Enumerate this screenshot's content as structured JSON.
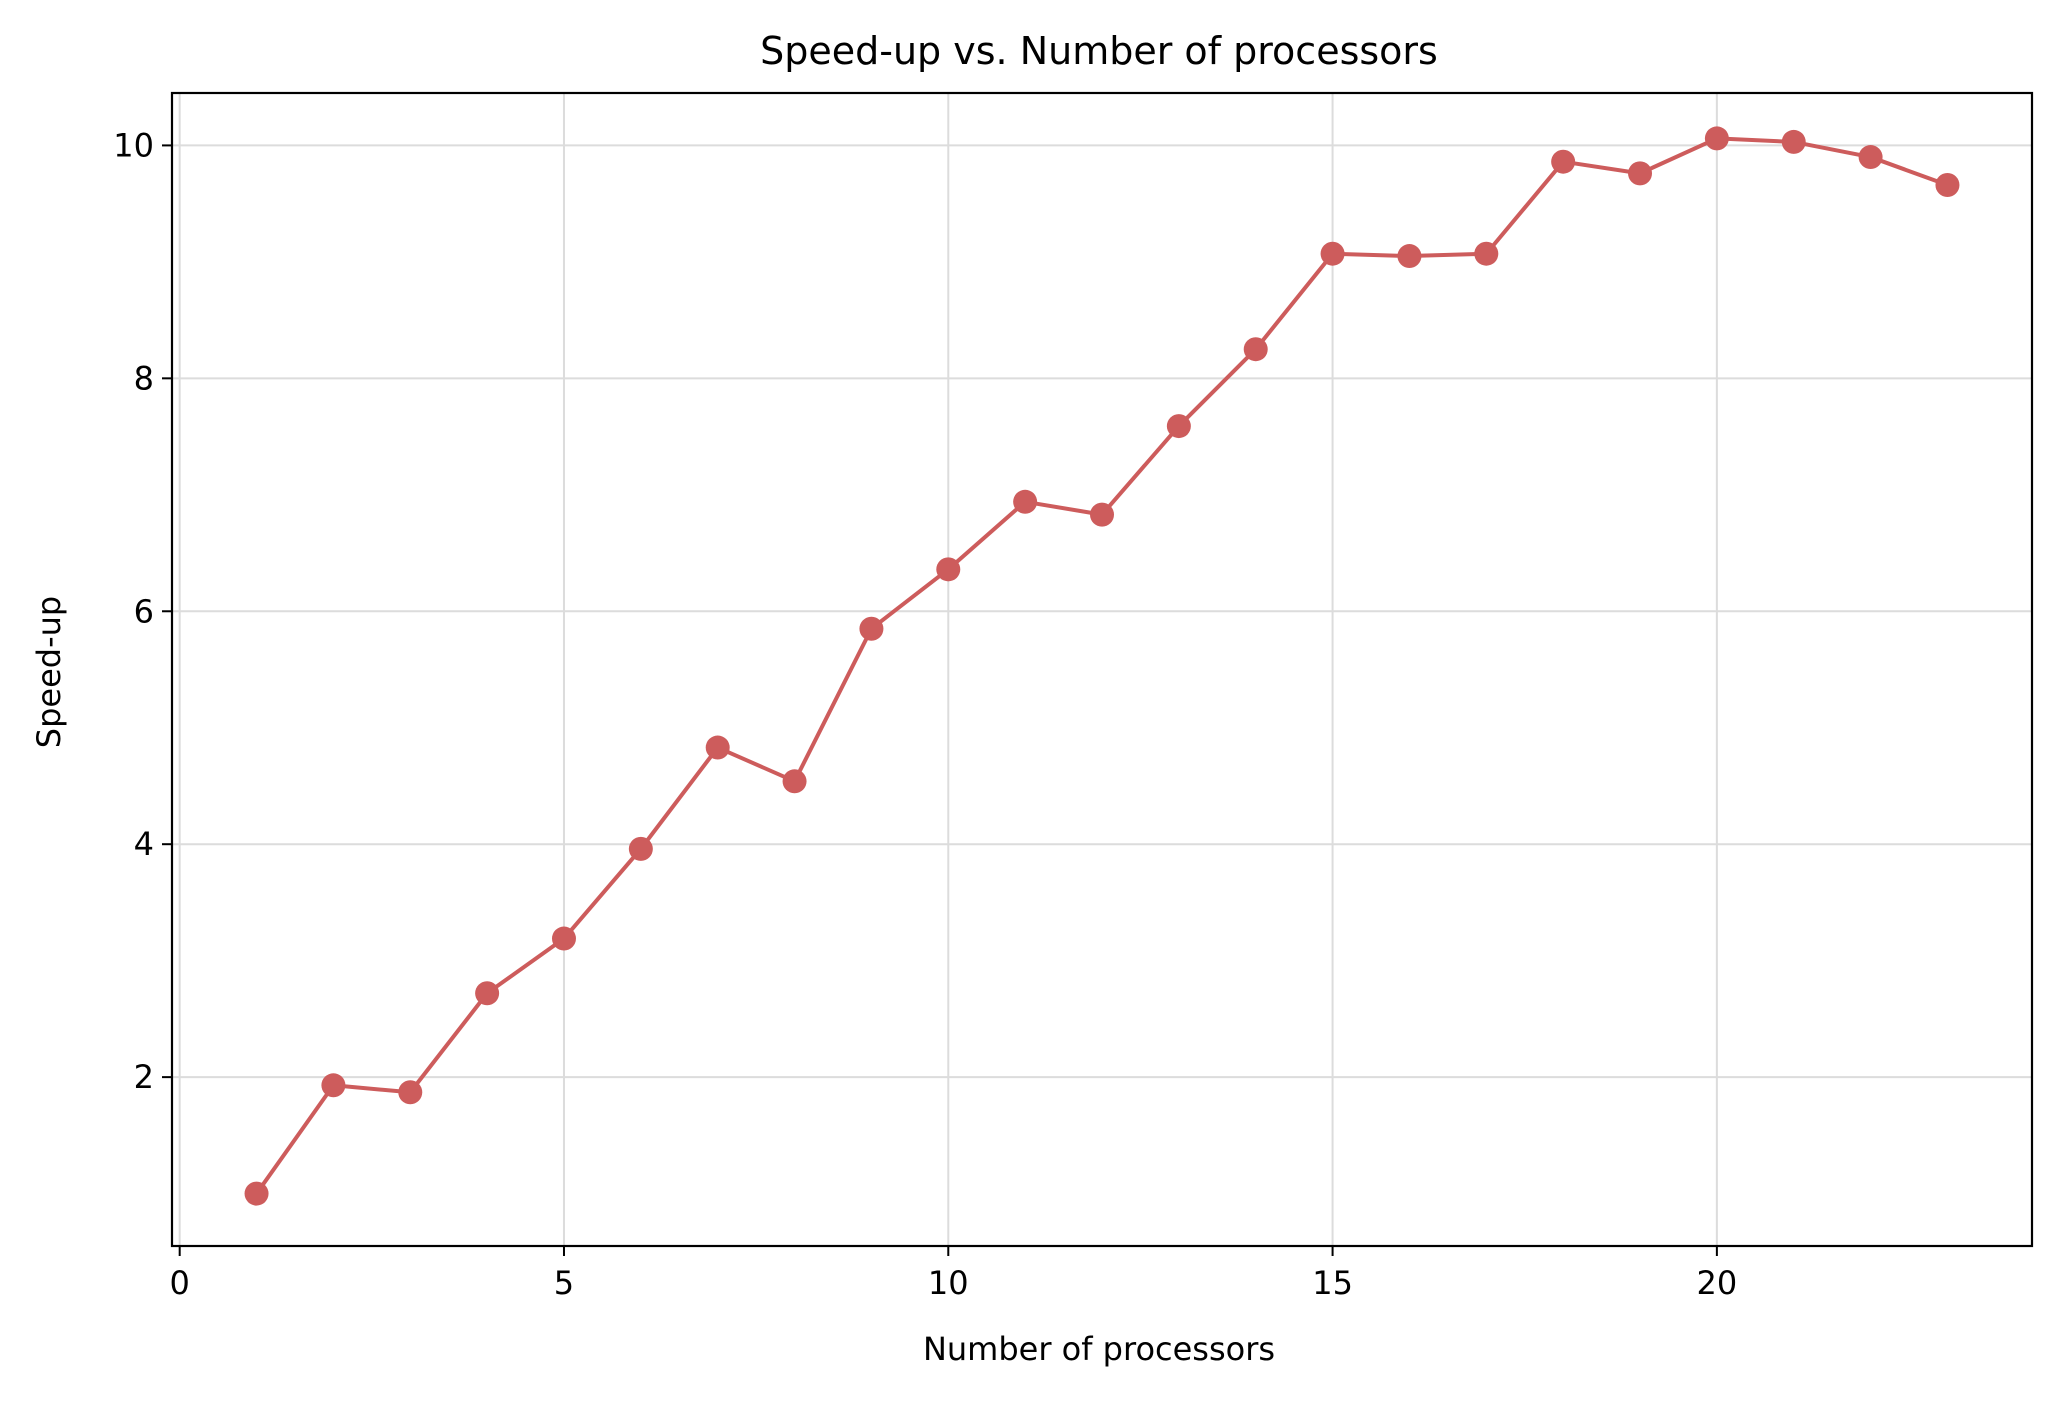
{
  "chart_data": {
    "type": "line",
    "title": "Speed-up vs. Number of processors",
    "xlabel": "Number of processors",
    "ylabel": "Speed-up",
    "xlim": [
      -0.1,
      24.1
    ],
    "ylim": [
      0.55,
      10.45
    ],
    "xticks": [
      0,
      5,
      10,
      15,
      20
    ],
    "yticks": [
      2,
      4,
      6,
      8,
      10
    ],
    "grid": true,
    "series": [
      {
        "color": "#cd5c5c",
        "marker": "circle",
        "x": [
          1,
          2,
          3,
          4,
          5,
          6,
          7,
          8,
          9,
          10,
          11,
          12,
          13,
          14,
          15,
          16,
          17,
          18,
          19,
          20,
          21,
          22,
          23
        ],
        "y": [
          1.0,
          1.93,
          1.87,
          2.72,
          3.19,
          3.96,
          4.83,
          4.54,
          5.85,
          6.36,
          6.94,
          6.83,
          7.59,
          8.25,
          9.07,
          9.05,
          9.07,
          9.86,
          9.76,
          10.06,
          10.03,
          9.9,
          9.66
        ]
      }
    ]
  }
}
